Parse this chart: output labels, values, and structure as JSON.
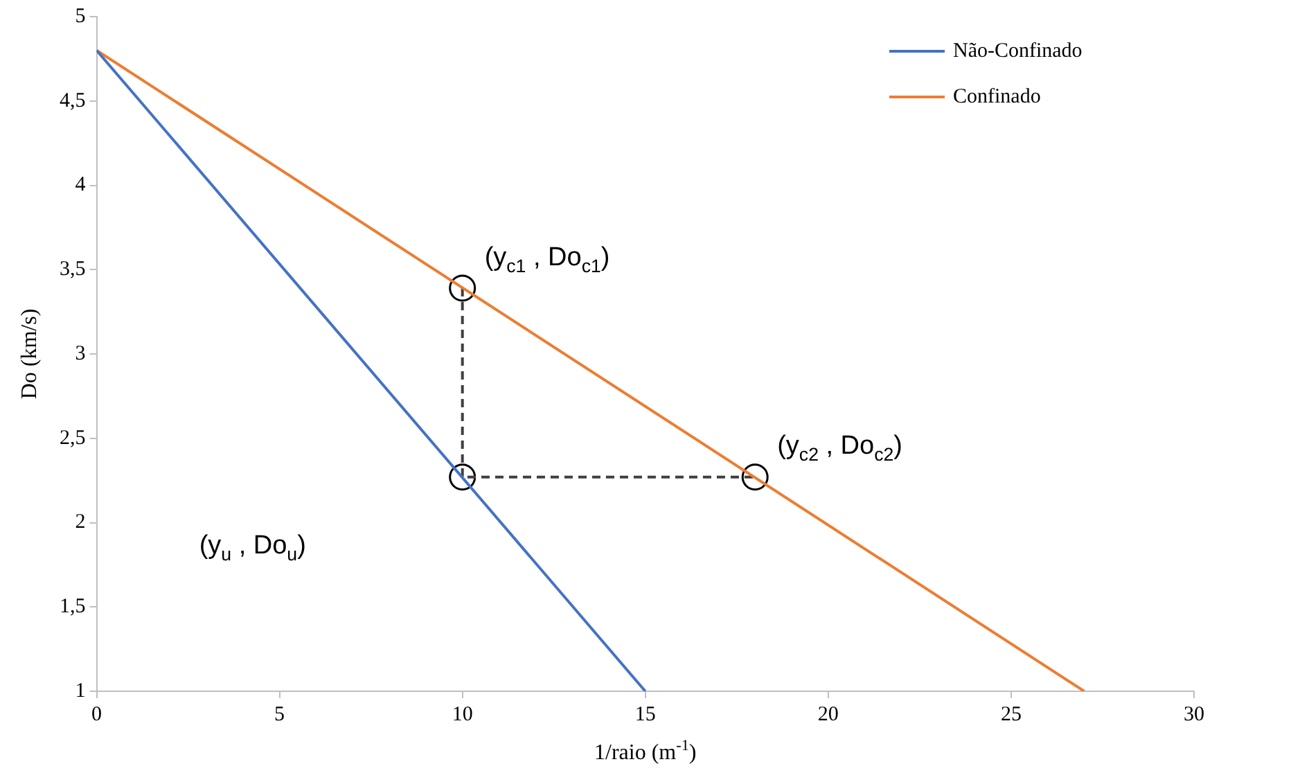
{
  "chart_data": {
    "type": "line",
    "xlabel": "1/raio (m$^{-1}$)",
    "ylabel": "Do (km/s)",
    "xlim": [
      0,
      30
    ],
    "xticks": [
      0,
      5,
      10,
      15,
      20,
      25,
      30
    ],
    "ylim": [
      1,
      5
    ],
    "yticks": [
      1,
      {
        "value": 1.5,
        "label": "1,5"
      },
      2,
      {
        "value": 2.5,
        "label": "2,5"
      },
      3,
      {
        "value": 3.5,
        "label": "3,5"
      },
      4,
      {
        "value": 4.5,
        "label": "4,5"
      },
      5
    ],
    "grid": false,
    "legend": "top right",
    "series": [
      {
        "name": "Não-Confinado",
        "color": "#4472c4",
        "x": [
          0,
          15
        ],
        "values": [
          4.8,
          1
        ],
        "marker": "none"
      },
      {
        "name": "Confinado",
        "color": "#ed7d31",
        "x": [
          0,
          27
        ],
        "values": [
          4.8,
          1
        ],
        "marker": "none"
      },
      {
        "color": "#404040",
        "x": [
          10,
          10,
          18
        ],
        "values": [
          3.39,
          2.27,
          2.27
        ],
        "marker": "none",
        "line_style": "dashed"
      },
      {
        "type": "scatter",
        "color": "#000000",
        "x": [
          10,
          10,
          18
        ],
        "values": [
          3.39,
          2.27,
          2.27
        ],
        "marker": "circle"
      }
    ],
    "annotations": [
      "(y$_{c1}$ , Do$_{c1}$)",
      "(y$_{u}$ , Do$_{u}$)",
      "(y$_{c2}$ , Do$_{c2}$)"
    ]
  }
}
